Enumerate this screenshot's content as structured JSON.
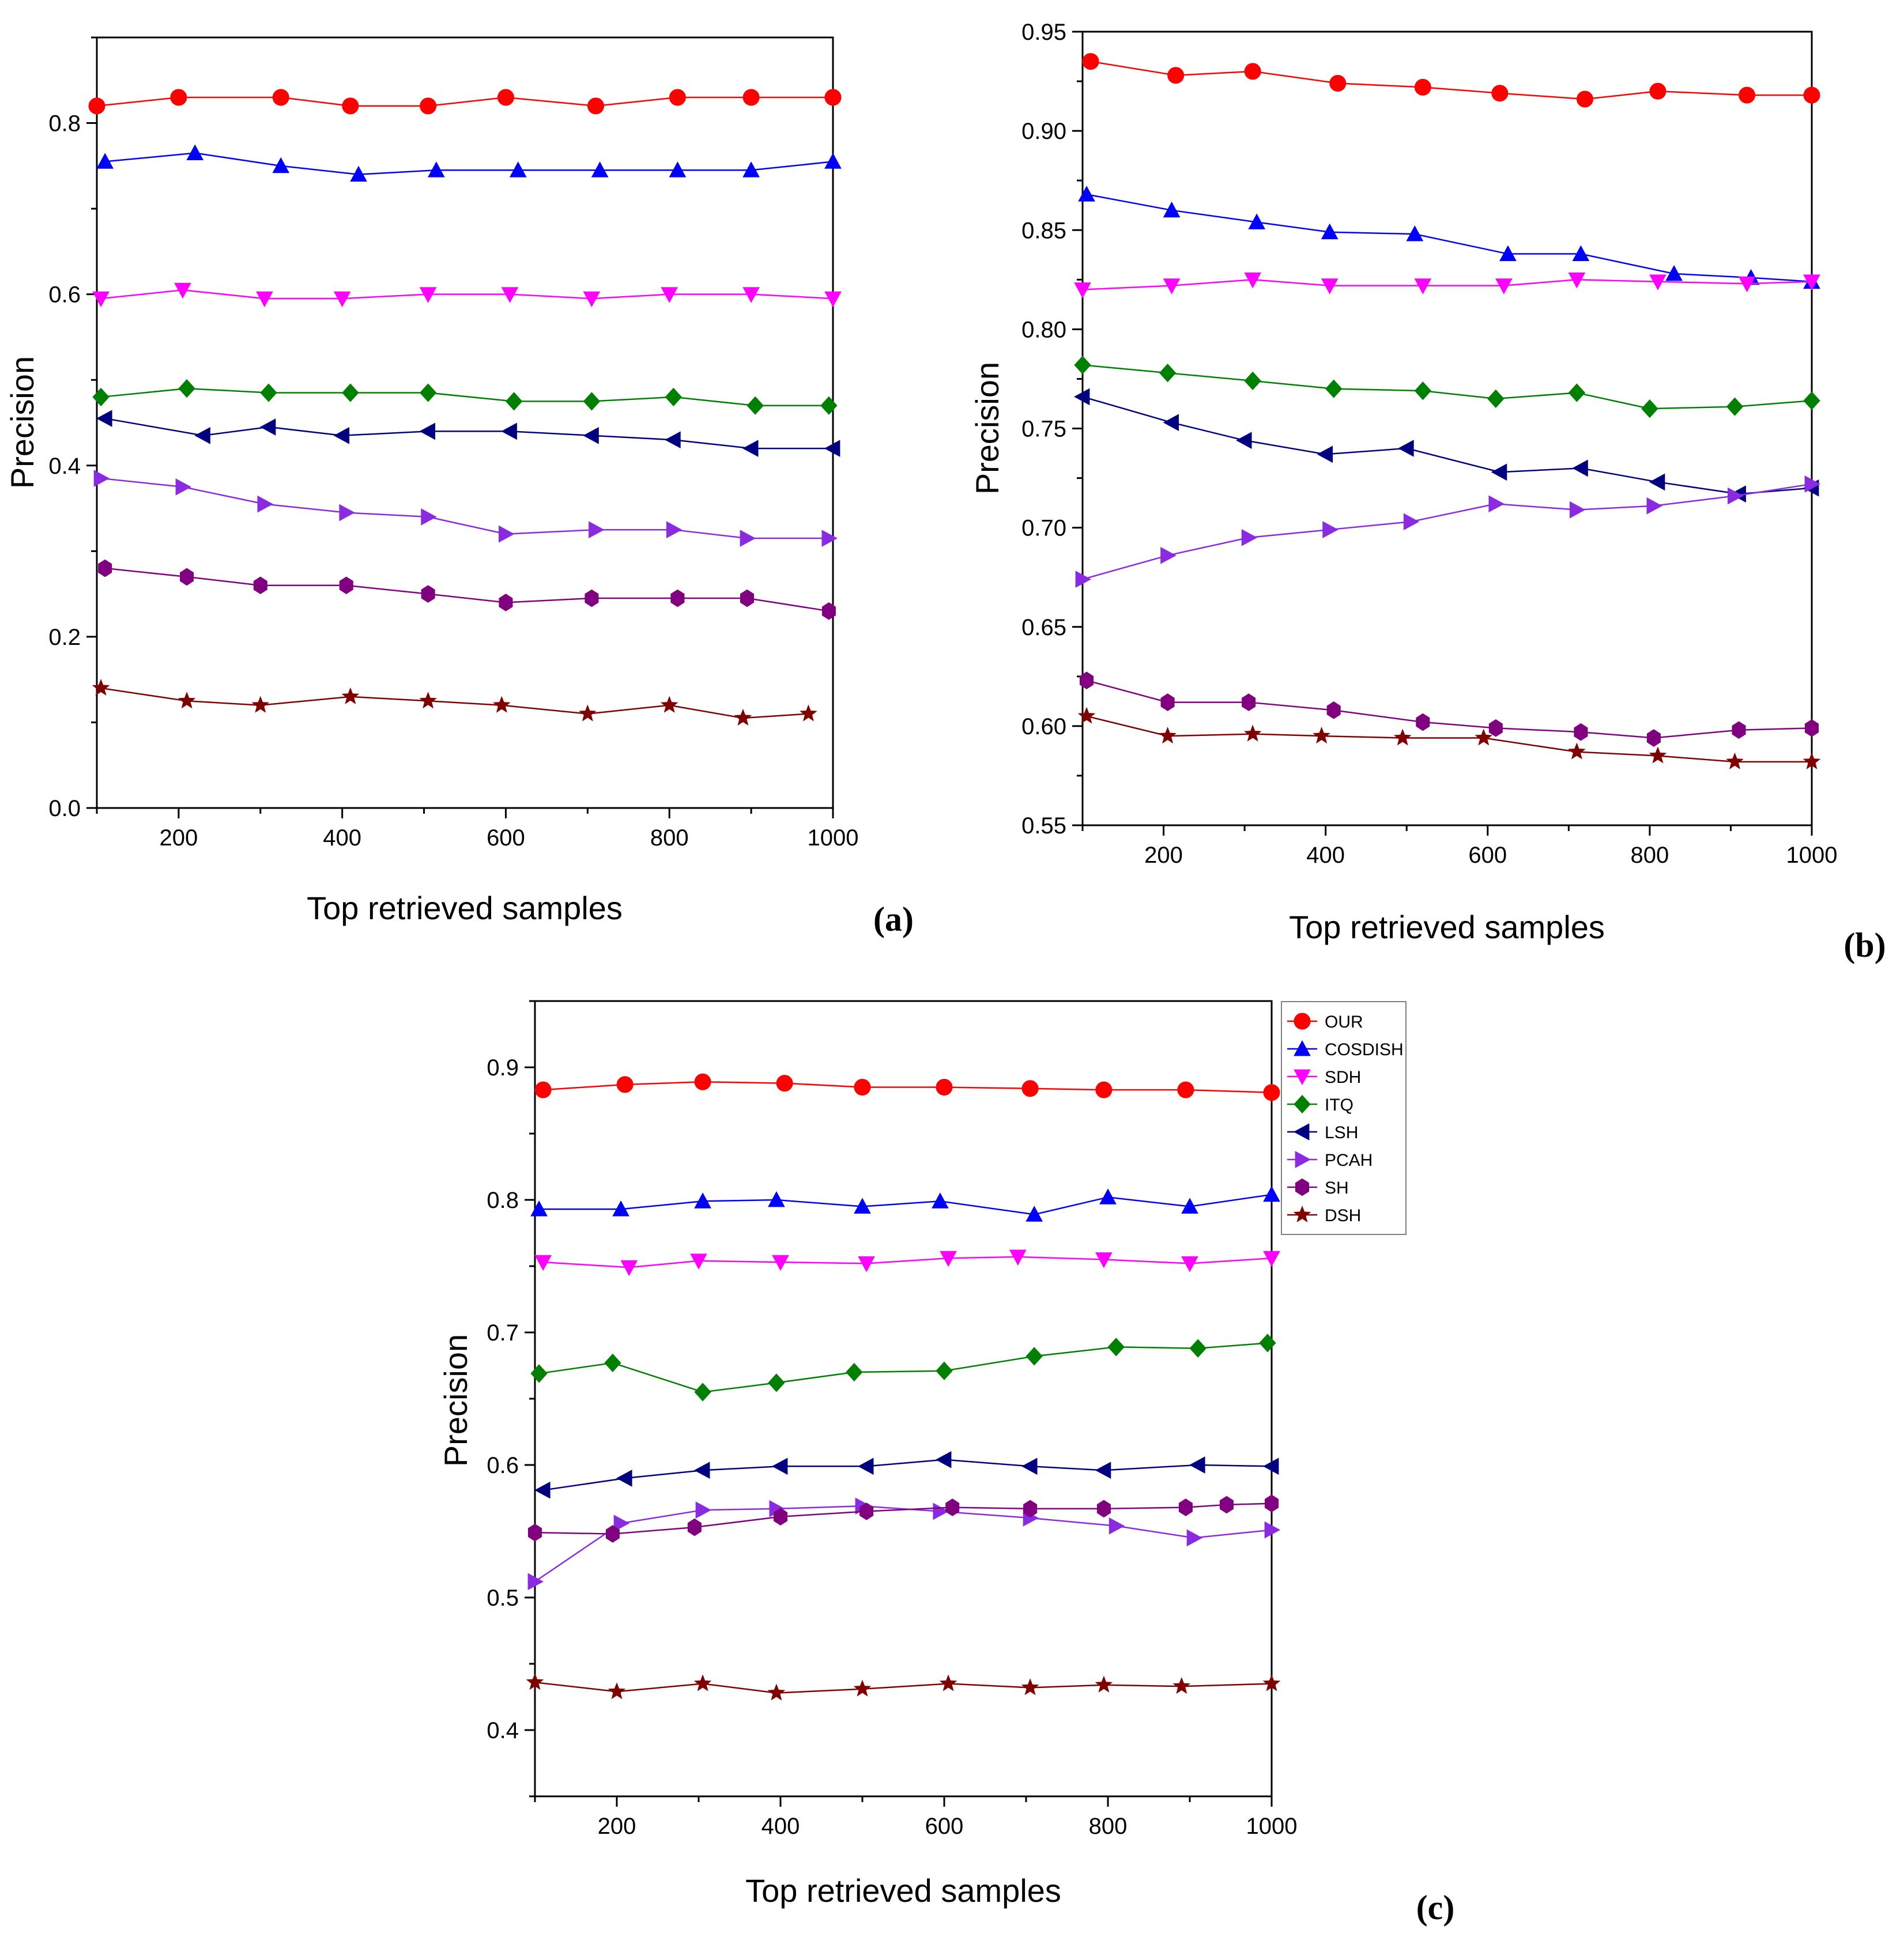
{
  "figure": {
    "legend": [
      {
        "name": "OUR",
        "color": "#ff0000",
        "marker": "circle"
      },
      {
        "name": "COSDISH",
        "color": "#0000ff",
        "marker": "triangle-up"
      },
      {
        "name": "SDH",
        "color": "#ff00ff",
        "marker": "triangle-down"
      },
      {
        "name": "ITQ",
        "color": "#008000",
        "marker": "diamond"
      },
      {
        "name": "LSH",
        "color": "#000080",
        "marker": "triangle-left"
      },
      {
        "name": "PCAH",
        "color": "#8a2be2",
        "marker": "triangle-right"
      },
      {
        "name": "SH",
        "color": "#800080",
        "marker": "hexagon"
      },
      {
        "name": "DSH",
        "color": "#800000",
        "marker": "star"
      }
    ]
  },
  "chart_data": [
    {
      "type": "line",
      "panel_label": "(a)",
      "xlabel": "Top retrieved samples",
      "ylabel": "Precision",
      "xlim": [
        100,
        1000
      ],
      "ylim": [
        0.0,
        0.9
      ],
      "xticks": [
        "200",
        "400",
        "600",
        "800",
        "1000"
      ],
      "xtick_values": [
        200,
        400,
        600,
        800,
        1000
      ],
      "yticks": [
        "0.0",
        "0.2",
        "0.4",
        "0.6",
        "0.8"
      ],
      "ytick_values": [
        0.0,
        0.2,
        0.4,
        0.6,
        0.8
      ],
      "grid": false,
      "series": [
        {
          "name": "OUR",
          "x": [
            100,
            200,
            325,
            410,
            505,
            600,
            710,
            810,
            900,
            1000
          ],
          "y": [
            0.82,
            0.83,
            0.83,
            0.82,
            0.82,
            0.83,
            0.82,
            0.83,
            0.83,
            0.83
          ]
        },
        {
          "name": "COSDISH",
          "x": [
            110,
            220,
            325,
            420,
            515,
            615,
            715,
            810,
            900,
            1000
          ],
          "y": [
            0.755,
            0.765,
            0.75,
            0.74,
            0.745,
            0.745,
            0.745,
            0.745,
            0.745,
            0.755
          ]
        },
        {
          "name": "SDH",
          "x": [
            105,
            205,
            305,
            400,
            505,
            605,
            705,
            800,
            900,
            1000
          ],
          "y": [
            0.595,
            0.605,
            0.595,
            0.595,
            0.6,
            0.6,
            0.595,
            0.6,
            0.6,
            0.595
          ]
        },
        {
          "name": "ITQ",
          "x": [
            105,
            210,
            310,
            410,
            505,
            610,
            705,
            805,
            905,
            995
          ],
          "y": [
            0.48,
            0.49,
            0.485,
            0.485,
            0.485,
            0.475,
            0.475,
            0.48,
            0.47,
            0.47
          ]
        },
        {
          "name": "LSH",
          "x": [
            110,
            230,
            310,
            400,
            505,
            605,
            705,
            805,
            900,
            1000
          ],
          "y": [
            0.455,
            0.435,
            0.445,
            0.435,
            0.44,
            0.44,
            0.435,
            0.43,
            0.42,
            0.42
          ]
        },
        {
          "name": "PCAH",
          "x": [
            105,
            205,
            305,
            405,
            505,
            600,
            710,
            805,
            895,
            995
          ],
          "y": [
            0.385,
            0.375,
            0.355,
            0.345,
            0.34,
            0.32,
            0.325,
            0.325,
            0.315,
            0.315
          ]
        },
        {
          "name": "SH",
          "x": [
            110,
            210,
            300,
            405,
            505,
            600,
            705,
            810,
            895,
            995
          ],
          "y": [
            0.28,
            0.27,
            0.26,
            0.26,
            0.25,
            0.24,
            0.245,
            0.245,
            0.245,
            0.23
          ]
        },
        {
          "name": "DSH",
          "x": [
            105,
            210,
            300,
            410,
            505,
            595,
            700,
            800,
            890,
            970
          ],
          "y": [
            0.14,
            0.125,
            0.12,
            0.13,
            0.125,
            0.12,
            0.11,
            0.12,
            0.105,
            0.11
          ]
        }
      ]
    },
    {
      "type": "line",
      "panel_label": "(b)",
      "xlabel": "Top retrieved samples",
      "ylabel": "Precision",
      "xlim": [
        100,
        1000
      ],
      "ylim": [
        0.55,
        0.95
      ],
      "xticks": [
        "200",
        "400",
        "600",
        "800",
        "1000"
      ],
      "xtick_values": [
        200,
        400,
        600,
        800,
        1000
      ],
      "yticks": [
        "0.55",
        "0.60",
        "0.65",
        "0.70",
        "0.75",
        "0.80",
        "0.85",
        "0.90",
        "0.95"
      ],
      "ytick_values": [
        0.55,
        0.6,
        0.65,
        0.7,
        0.75,
        0.8,
        0.85,
        0.9,
        0.95
      ],
      "grid": false,
      "series": [
        {
          "name": "OUR",
          "x": [
            110,
            215,
            310,
            415,
            520,
            615,
            720,
            810,
            920,
            1000
          ],
          "y": [
            0.935,
            0.928,
            0.93,
            0.924,
            0.922,
            0.919,
            0.916,
            0.92,
            0.918,
            0.918
          ]
        },
        {
          "name": "COSDISH",
          "x": [
            105,
            210,
            315,
            405,
            510,
            625,
            715,
            830,
            925,
            1000
          ],
          "y": [
            0.868,
            0.86,
            0.854,
            0.849,
            0.848,
            0.838,
            0.838,
            0.828,
            0.826,
            0.824
          ]
        },
        {
          "name": "SDH",
          "x": [
            100,
            210,
            310,
            405,
            520,
            620,
            710,
            810,
            920,
            1000
          ],
          "y": [
            0.82,
            0.822,
            0.825,
            0.822,
            0.822,
            0.822,
            0.825,
            0.824,
            0.823,
            0.824
          ]
        },
        {
          "name": "ITQ",
          "x": [
            100,
            205,
            310,
            410,
            520,
            610,
            710,
            800,
            905,
            1000
          ],
          "y": [
            0.782,
            0.778,
            0.774,
            0.77,
            0.769,
            0.765,
            0.768,
            0.76,
            0.761,
            0.764
          ]
        },
        {
          "name": "LSH",
          "x": [
            100,
            210,
            300,
            400,
            500,
            615,
            715,
            810,
            910,
            1000
          ],
          "y": [
            0.766,
            0.753,
            0.744,
            0.737,
            0.74,
            0.728,
            0.73,
            0.723,
            0.717,
            0.72
          ]
        },
        {
          "name": "PCAH",
          "x": [
            100,
            205,
            305,
            405,
            505,
            610,
            710,
            805,
            905,
            1000
          ],
          "y": [
            0.674,
            0.686,
            0.695,
            0.699,
            0.703,
            0.712,
            0.709,
            0.711,
            0.716,
            0.722
          ]
        },
        {
          "name": "SH",
          "x": [
            105,
            205,
            305,
            410,
            520,
            610,
            715,
            805,
            910,
            1000
          ],
          "y": [
            0.623,
            0.612,
            0.612,
            0.608,
            0.602,
            0.599,
            0.597,
            0.594,
            0.598,
            0.599
          ]
        },
        {
          "name": "DSH",
          "x": [
            105,
            205,
            310,
            395,
            495,
            595,
            710,
            810,
            905,
            1000
          ],
          "y": [
            0.605,
            0.595,
            0.596,
            0.595,
            0.594,
            0.594,
            0.587,
            0.585,
            0.582,
            0.582
          ]
        }
      ]
    },
    {
      "type": "line",
      "panel_label": "(c)",
      "xlabel": "Top retrieved samples",
      "ylabel": "Precision",
      "xlim": [
        100,
        1000
      ],
      "ylim": [
        0.35,
        0.95
      ],
      "xticks": [
        "200",
        "400",
        "600",
        "800",
        "1000"
      ],
      "xtick_values": [
        200,
        400,
        600,
        800,
        1000
      ],
      "yticks": [
        "0.4",
        "0.5",
        "0.6",
        "0.7",
        "0.8",
        "0.9"
      ],
      "ytick_values": [
        0.4,
        0.5,
        0.6,
        0.7,
        0.8,
        0.9
      ],
      "grid": false,
      "legend_position": "outside-top-right",
      "series": [
        {
          "name": "OUR",
          "x": [
            110,
            210,
            305,
            405,
            500,
            600,
            705,
            795,
            895,
            1000
          ],
          "y": [
            0.883,
            0.887,
            0.889,
            0.888,
            0.885,
            0.885,
            0.884,
            0.883,
            0.883,
            0.881
          ]
        },
        {
          "name": "COSDISH",
          "x": [
            105,
            205,
            305,
            395,
            500,
            595,
            710,
            800,
            900,
            1000
          ],
          "y": [
            0.793,
            0.793,
            0.799,
            0.8,
            0.795,
            0.799,
            0.789,
            0.802,
            0.795,
            0.804
          ]
        },
        {
          "name": "SDH",
          "x": [
            110,
            215,
            300,
            400,
            505,
            605,
            690,
            795,
            900,
            1000
          ],
          "y": [
            0.753,
            0.749,
            0.754,
            0.753,
            0.752,
            0.756,
            0.757,
            0.755,
            0.752,
            0.756
          ]
        },
        {
          "name": "ITQ",
          "x": [
            105,
            195,
            305,
            395,
            490,
            600,
            710,
            810,
            910,
            995
          ],
          "y": [
            0.669,
            0.677,
            0.655,
            0.662,
            0.67,
            0.671,
            0.682,
            0.689,
            0.688,
            0.692
          ]
        },
        {
          "name": "LSH",
          "x": [
            110,
            210,
            305,
            400,
            505,
            600,
            705,
            795,
            910,
            1000
          ],
          "y": [
            0.581,
            0.59,
            0.596,
            0.599,
            0.599,
            0.604,
            0.599,
            0.596,
            0.6,
            0.599
          ]
        },
        {
          "name": "PCAH",
          "x": [
            100,
            205,
            305,
            395,
            500,
            595,
            705,
            810,
            905,
            1000
          ],
          "y": [
            0.512,
            0.556,
            0.566,
            0.567,
            0.569,
            0.565,
            0.56,
            0.554,
            0.545,
            0.551
          ]
        },
        {
          "name": "SH",
          "x": [
            100,
            195,
            295,
            400,
            505,
            610,
            705,
            795,
            895,
            945,
            1000
          ],
          "y": [
            0.549,
            0.548,
            0.553,
            0.561,
            0.565,
            0.568,
            0.567,
            0.567,
            0.568,
            0.57,
            0.571
          ]
        },
        {
          "name": "DSH",
          "x": [
            100,
            200,
            305,
            395,
            500,
            605,
            705,
            795,
            890,
            1000
          ],
          "y": [
            0.436,
            0.429,
            0.435,
            0.428,
            0.431,
            0.435,
            0.432,
            0.434,
            0.433,
            0.435
          ]
        }
      ]
    }
  ]
}
